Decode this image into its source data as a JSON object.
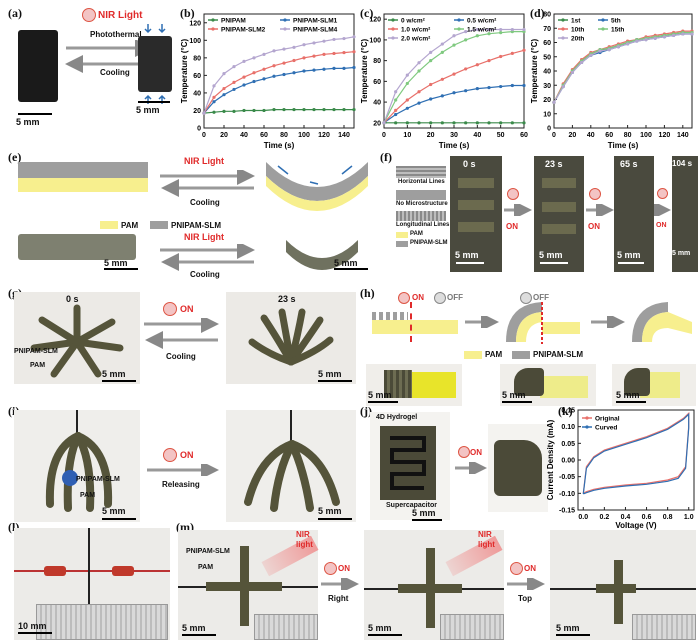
{
  "panels": {
    "a": {
      "label": "(a)",
      "nir_light": "NIR Light",
      "photothermal": "Photothermal",
      "cooling": "Cooling",
      "scale1": "5 mm",
      "scale2": "5 mm"
    },
    "e": {
      "label": "(e)",
      "nir_light_top": "NIR Light",
      "cooling_top": "Cooling",
      "nir_light_bottom": "NIR Light",
      "cooling_bottom": "Cooling",
      "legend_pam": "PAM",
      "legend_pnipam": "PNIPAM-SLM",
      "scale1": "5 mm",
      "scale2": "5 mm"
    },
    "f": {
      "label": "(f)",
      "horizontal": "Horizontal Lines",
      "no_micro": "No Microstructure",
      "longitudinal": "Longitudinal Lines",
      "legend_pam": "PAM",
      "legend_pnipam": "PNIPAM-SLM",
      "t0": "0 s",
      "t1": "23 s",
      "t2": "65 s",
      "t3": "104 s",
      "on1": "ON",
      "on2": "ON",
      "on3": "ON",
      "scale0": "5 mm",
      "scale1": "5 mm",
      "scale2": "5 mm",
      "scale3": "5 mm"
    },
    "g": {
      "label": "(g)",
      "t0": "0 s",
      "t1": "23 s",
      "on": "ON",
      "cooling": "Cooling",
      "pnipam": "PNIPAM-SLM",
      "pam": "PAM",
      "scale1": "5 mm",
      "scale2": "5 mm"
    },
    "h": {
      "label": "(h)",
      "on": "ON",
      "off1": "OFF",
      "off2": "OFF",
      "legend_pam": "PAM",
      "legend_pnipam": "PNIPAM-SLM",
      "scale1": "5 mm",
      "scale2": "5 mm",
      "scale3": "5 mm"
    },
    "i": {
      "label": "(i)",
      "on": "ON",
      "releasing": "Releasing",
      "pnipam": "PNIPAM-SLM",
      "pam": "PAM",
      "scale1": "5 mm",
      "scale2": "5 mm"
    },
    "j": {
      "label": "(j)",
      "hydrogel": "4D Hydrogel",
      "supercap": "Supercapacitor",
      "on": "ON",
      "scale": "5 mm"
    },
    "l": {
      "label": "(l)",
      "scale": "10 mm"
    },
    "m": {
      "label": "(m)",
      "pnipam": "PNIPAM-SLM",
      "pam": "PAM",
      "nir1": "NIR",
      "light1": "light",
      "nir2": "NIR",
      "light2": "light",
      "on1": "ON",
      "on2": "ON",
      "right": "Right",
      "top": "Top",
      "scale1": "5 mm",
      "scale2": "5 mm",
      "scale3": "5 mm"
    }
  },
  "chart_data": [
    {
      "id": "b",
      "label": "(b)",
      "type": "line",
      "xlabel": "Time (s)",
      "ylabel": "Temperature (°C)",
      "xlim": [
        0,
        150
      ],
      "ylim": [
        0,
        130
      ],
      "xticks": [
        0,
        20,
        40,
        60,
        80,
        100,
        120,
        140
      ],
      "yticks": [
        0,
        20,
        40,
        60,
        80,
        100,
        120
      ],
      "legend": "top",
      "series": [
        {
          "name": "PNIPAM",
          "color": "#3a8a4a",
          "marker": "circle",
          "x": [
            0,
            10,
            20,
            30,
            40,
            50,
            60,
            70,
            80,
            90,
            100,
            110,
            120,
            130,
            140,
            150
          ],
          "y": [
            17,
            18,
            19,
            19,
            20,
            20,
            20,
            21,
            21,
            21,
            21,
            21,
            21,
            21,
            21,
            21
          ]
        },
        {
          "name": "PNIPAM-SLM1",
          "color": "#2f6fb3",
          "marker": "diamond",
          "x": [
            0,
            10,
            20,
            30,
            40,
            50,
            60,
            70,
            80,
            90,
            100,
            110,
            120,
            130,
            140,
            150
          ],
          "y": [
            17,
            30,
            38,
            44,
            49,
            53,
            56,
            59,
            61,
            63,
            65,
            66,
            67,
            68,
            68,
            69
          ]
        },
        {
          "name": "PNIPAM-SLM2",
          "color": "#e8706a",
          "marker": "circle",
          "x": [
            0,
            10,
            20,
            30,
            40,
            50,
            60,
            70,
            80,
            90,
            100,
            110,
            120,
            130,
            140,
            150
          ],
          "y": [
            17,
            35,
            45,
            52,
            58,
            63,
            67,
            71,
            74,
            77,
            80,
            82,
            84,
            85,
            86,
            87
          ]
        },
        {
          "name": "PNIPAM-SLM4",
          "color": "#b4a6cf",
          "marker": "circle",
          "x": [
            0,
            10,
            20,
            30,
            40,
            50,
            60,
            70,
            80,
            90,
            100,
            110,
            120,
            130,
            140,
            150
          ],
          "y": [
            17,
            48,
            62,
            70,
            76,
            80,
            84,
            88,
            90,
            92,
            95,
            97,
            99,
            101,
            102,
            104
          ]
        }
      ]
    },
    {
      "id": "c",
      "label": "(c)",
      "type": "line",
      "xlabel": "Time (s)",
      "ylabel": "Temperature (°C)",
      "xlim": [
        0,
        60
      ],
      "ylim": [
        15,
        125
      ],
      "xticks": [
        0,
        10,
        20,
        30,
        40,
        50,
        60
      ],
      "yticks": [
        20,
        40,
        60,
        80,
        100,
        120
      ],
      "legend": "top",
      "series": [
        {
          "name": "0 w/cm²",
          "color": "#3a8a4a",
          "marker": "circle",
          "x": [
            0,
            5,
            10,
            15,
            20,
            25,
            30,
            35,
            40,
            45,
            50,
            55,
            60
          ],
          "y": [
            20,
            20,
            20,
            20,
            20,
            20,
            20,
            20,
            20,
            20,
            20,
            20,
            20
          ]
        },
        {
          "name": "0.5 w/cm²",
          "color": "#2f6fb3",
          "marker": "diamond",
          "x": [
            0,
            5,
            10,
            15,
            20,
            25,
            30,
            35,
            40,
            45,
            50,
            55,
            60
          ],
          "y": [
            20,
            28,
            34,
            39,
            43,
            46,
            49,
            51,
            53,
            54,
            55,
            56,
            56
          ]
        },
        {
          "name": "1.0 w/cm²",
          "color": "#e8706a",
          "marker": "circle",
          "x": [
            0,
            5,
            10,
            15,
            20,
            25,
            30,
            35,
            40,
            45,
            50,
            55,
            60
          ],
          "y": [
            20,
            32,
            42,
            50,
            57,
            62,
            67,
            72,
            76,
            80,
            84,
            87,
            90
          ]
        },
        {
          "name": "1.5 w/cm²",
          "color": "#7fc97f",
          "marker": "circle",
          "x": [
            0,
            5,
            10,
            15,
            20,
            25,
            30,
            35,
            40,
            45,
            50,
            55,
            60
          ],
          "y": [
            20,
            42,
            58,
            70,
            80,
            88,
            95,
            100,
            104,
            106,
            107,
            108,
            108
          ]
        },
        {
          "name": "2.0 w/cm²",
          "color": "#b4a6cf",
          "marker": "circle",
          "x": [
            0,
            5,
            10,
            15,
            20,
            25,
            30,
            35,
            40,
            45,
            50,
            55,
            60
          ],
          "y": [
            20,
            50,
            66,
            78,
            88,
            96,
            104,
            108,
            110,
            110,
            110,
            110,
            110
          ]
        }
      ]
    },
    {
      "id": "d",
      "label": "(d)",
      "type": "line",
      "xlabel": "Time (s)",
      "ylabel": "Temperature (°C)",
      "xlim": [
        0,
        150
      ],
      "ylim": [
        0,
        80
      ],
      "xticks": [
        0,
        20,
        40,
        60,
        80,
        100,
        120,
        140
      ],
      "yticks": [
        0,
        10,
        20,
        30,
        40,
        50,
        60,
        70,
        80
      ],
      "legend": "top-left",
      "series": [
        {
          "name": "1st",
          "color": "#3a8a4a",
          "x": [
            0,
            10,
            20,
            30,
            40,
            50,
            60,
            70,
            80,
            90,
            100,
            110,
            120,
            130,
            140,
            150
          ],
          "y": [
            18,
            30,
            40,
            47,
            52,
            54,
            56,
            58,
            60,
            62,
            63,
            64,
            65,
            66,
            67,
            67
          ]
        },
        {
          "name": "5th",
          "color": "#2f6fb3",
          "x": [
            0,
            10,
            20,
            30,
            40,
            50,
            60,
            70,
            80,
            90,
            100,
            110,
            120,
            130,
            140,
            150
          ],
          "y": [
            18,
            29,
            39,
            46,
            51,
            53,
            55,
            57,
            59,
            61,
            62,
            63,
            64,
            65,
            66,
            66
          ]
        },
        {
          "name": "10th",
          "color": "#e8706a",
          "x": [
            0,
            10,
            20,
            30,
            40,
            50,
            60,
            70,
            80,
            90,
            100,
            110,
            120,
            130,
            140,
            150
          ],
          "y": [
            18,
            31,
            41,
            48,
            53,
            55,
            57,
            59,
            61,
            62,
            64,
            65,
            66,
            67,
            68,
            68
          ]
        },
        {
          "name": "15th",
          "color": "#7fc97f",
          "x": [
            0,
            10,
            20,
            30,
            40,
            50,
            60,
            70,
            80,
            90,
            100,
            110,
            120,
            130,
            140,
            150
          ],
          "y": [
            18,
            30,
            40,
            47,
            52,
            55,
            56,
            58,
            60,
            62,
            63,
            64,
            65,
            66,
            67,
            67
          ]
        },
        {
          "name": "20th",
          "color": "#b4a6cf",
          "x": [
            0,
            10,
            20,
            30,
            40,
            50,
            60,
            70,
            80,
            90,
            100,
            110,
            120,
            130,
            140,
            150
          ],
          "y": [
            18,
            29,
            39,
            46,
            51,
            54,
            55,
            57,
            59,
            61,
            62,
            63,
            64,
            65,
            66,
            66
          ]
        }
      ]
    },
    {
      "id": "k",
      "label": "(k)",
      "type": "line",
      "xlabel": "Voltage (V)",
      "ylabel": "Current Density (mA)",
      "xlim": [
        -0.05,
        1.05
      ],
      "ylim": [
        -0.15,
        0.15
      ],
      "xticks": [
        0.0,
        0.2,
        0.4,
        0.6,
        0.8,
        1.0
      ],
      "yticks": [
        -0.15,
        -0.1,
        -0.05,
        0.0,
        0.05,
        0.1,
        0.15
      ],
      "legend": "top-left",
      "series": [
        {
          "name": "Original",
          "color": "#e8706a",
          "x": [
            0.0,
            0.03,
            0.1,
            0.2,
            0.4,
            0.6,
            0.8,
            0.95,
            1.0,
            1.0,
            0.97,
            0.9,
            0.8,
            0.6,
            0.4,
            0.2,
            0.1,
            0.03,
            0.0
          ],
          "y": [
            -0.1,
            -0.02,
            0.01,
            0.03,
            0.05,
            0.07,
            0.095,
            0.125,
            0.14,
            0.1,
            -0.02,
            -0.05,
            -0.06,
            -0.07,
            -0.075,
            -0.082,
            -0.088,
            -0.095,
            -0.1
          ]
        },
        {
          "name": "Curved",
          "color": "#2f6fb3",
          "x": [
            0.0,
            0.03,
            0.1,
            0.2,
            0.4,
            0.6,
            0.8,
            0.95,
            1.0,
            1.0,
            0.97,
            0.9,
            0.8,
            0.6,
            0.4,
            0.2,
            0.1,
            0.03,
            0.0
          ],
          "y": [
            -0.102,
            -0.025,
            0.007,
            0.027,
            0.047,
            0.067,
            0.092,
            0.122,
            0.137,
            0.095,
            -0.025,
            -0.055,
            -0.064,
            -0.073,
            -0.078,
            -0.085,
            -0.091,
            -0.098,
            -0.102
          ]
        }
      ]
    }
  ]
}
